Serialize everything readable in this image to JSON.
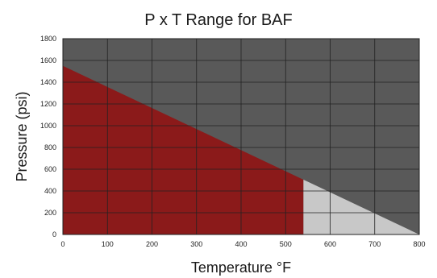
{
  "chart_data": {
    "type": "area",
    "title": "P x T Range for BAF",
    "xlabel": "Temperature °F",
    "ylabel": "Pressure (psi)",
    "xlim": [
      0,
      800
    ],
    "ylim": [
      0,
      1800
    ],
    "x_ticks": [
      0,
      100,
      200,
      300,
      400,
      500,
      600,
      700,
      800
    ],
    "y_ticks": [
      0,
      200,
      400,
      600,
      800,
      1000,
      1200,
      1400,
      1600,
      1800
    ],
    "grid": true,
    "boundary_line": {
      "x": [
        0,
        800
      ],
      "y": [
        1550,
        0
      ]
    },
    "regions": [
      {
        "x": [
          0,
          540
        ],
        "y_top": [
          1550,
          504
        ],
        "color": "#8b1a1a"
      },
      {
        "x": [
          540,
          800
        ],
        "y_top": [
          504,
          0
        ],
        "color": "#c8c8c8"
      }
    ],
    "background_color": "#595959",
    "grid_color": "#222222"
  }
}
